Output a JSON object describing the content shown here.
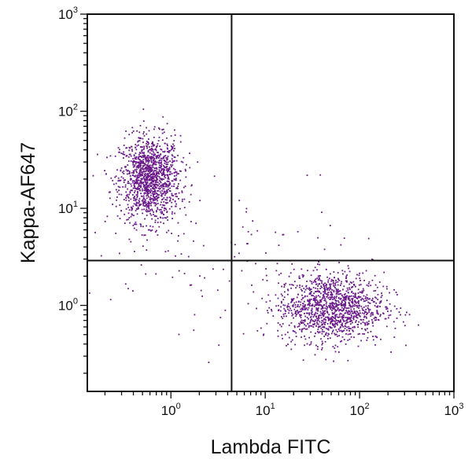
{
  "chart_data": {
    "type": "scatter",
    "xlabel": "Lambda FITC",
    "ylabel": "Kappa-AF647",
    "x_scale": "log",
    "y_scale": "log",
    "xlim": [
      0.13,
      1000
    ],
    "ylim": [
      0.13,
      1000
    ],
    "x_ticks": [
      {
        "base": "10",
        "exp": "0",
        "value": 1
      },
      {
        "base": "10",
        "exp": "1",
        "value": 10
      },
      {
        "base": "10",
        "exp": "2",
        "value": 100
      },
      {
        "base": "10",
        "exp": "3",
        "value": 1000
      }
    ],
    "y_ticks": [
      {
        "base": "10",
        "exp": "0",
        "value": 1
      },
      {
        "base": "10",
        "exp": "1",
        "value": 10
      },
      {
        "base": "10",
        "exp": "2",
        "value": 100
      },
      {
        "base": "10",
        "exp": "3",
        "value": 1000
      }
    ],
    "quadrant_gate": {
      "x": 4.4,
      "y": 2.9
    },
    "point_color": "#6b1a8a",
    "populations": [
      {
        "center_x": 0.6,
        "center_y": 20,
        "spread_log_x": 0.16,
        "spread_log_y": 0.22,
        "count": 1300
      },
      {
        "center_x": 50,
        "center_y": 0.95,
        "spread_log_x": 0.28,
        "spread_log_y": 0.18,
        "count": 1300
      },
      {
        "center_x": 1.2,
        "center_y": 3.5,
        "spread_log_x": 0.5,
        "spread_log_y": 0.45,
        "count": 60
      },
      {
        "center_x": 12,
        "center_y": 3,
        "spread_log_x": 0.6,
        "spread_log_y": 0.45,
        "count": 50
      }
    ],
    "grid": false,
    "legend": "none"
  }
}
